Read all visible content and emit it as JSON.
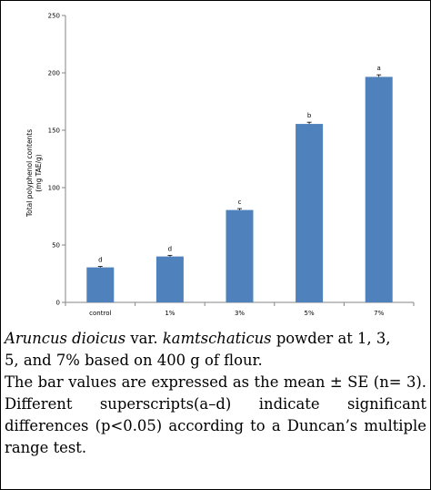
{
  "chart_data": {
    "type": "bar",
    "categories": [
      "control",
      "1%",
      "3%",
      "5%",
      "7%"
    ],
    "values": [
      30.5,
      40,
      80.5,
      155.5,
      196.5
    ],
    "errors": [
      0.8,
      1.0,
      1.2,
      1.5,
      1.8
    ],
    "superscripts": [
      "d",
      "d",
      "c",
      "b",
      "a"
    ],
    "ylabel_line1": "Total polyphenol contents",
    "ylabel_line2": "(mg TAE/g)",
    "xlabel": "",
    "title": "",
    "ylim": [
      0,
      250
    ],
    "yticks": [
      0,
      50,
      100,
      150,
      200,
      250
    ],
    "bar_color": "#4f81bd",
    "grid": false,
    "legend": "none"
  },
  "caption": {
    "species_genus": "Aruncus dioicus",
    "species_var": "var.",
    "species_epithet": "kamtschaticus",
    "line1_rest": "powder at 1, 3,",
    "line2": "5, and 7% based on 400 g of flour.",
    "line3": "The bar values are expressed as the mean ± SE (n= 3). Different superscripts(a–d) indicate significant differences (p<0.05) according to a Duncan’s multiple range test."
  }
}
